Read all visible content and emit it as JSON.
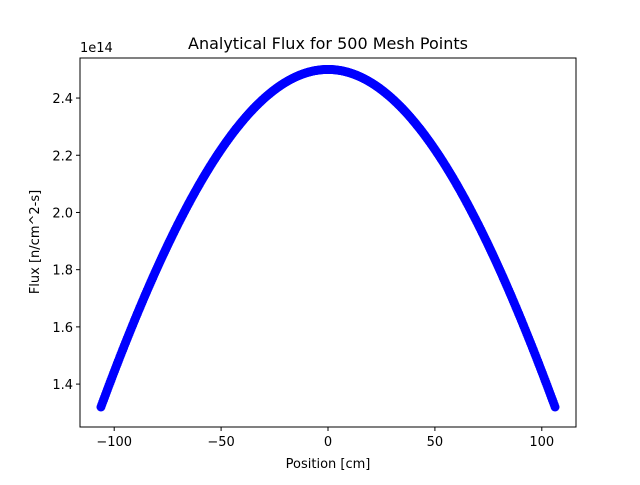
{
  "chart_data": {
    "type": "scatter",
    "title": "Analytical Flux for 500 Mesh Points",
    "xlabel": "Position [cm]",
    "ylabel": "Flux [n/cm^2-s]",
    "y_offset_label": "1e14",
    "xlim": [
      -116,
      116
    ],
    "ylim": [
      1.25,
      2.54
    ],
    "x_ticks": [
      -100,
      -50,
      0,
      50,
      100
    ],
    "x_tick_labels": [
      "−100",
      "−50",
      "0",
      "50",
      "100"
    ],
    "y_ticks": [
      1.4,
      1.6,
      1.8,
      2.0,
      2.2,
      2.4
    ],
    "y_tick_labels": [
      "1.4",
      "1.6",
      "1.8",
      "2.0",
      "2.2",
      "2.4"
    ],
    "grid": false,
    "legend": "none",
    "series": [
      {
        "color": "#0000ff",
        "marker": "circle",
        "n_points": 500,
        "x_range": [
          -106.2,
          106.2
        ],
        "curve": "cosine",
        "peak_x": 0,
        "peak_value": 2.5,
        "edge_value": 1.32
      }
    ]
  }
}
